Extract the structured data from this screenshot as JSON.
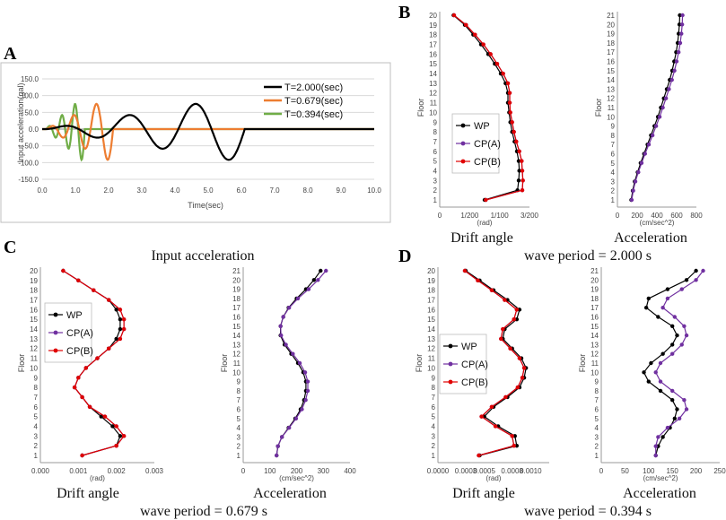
{
  "panels": {
    "a": {
      "letter": "A",
      "chart_data": {
        "type": "line",
        "xlabel": "Time(sec)",
        "ylabel": "Input acceleration(gal)",
        "xlim": [
          0,
          10
        ],
        "ylim": [
          -150,
          150
        ],
        "xticks": [
          "0.0",
          "1.0",
          "2.0",
          "3.0",
          "4.0",
          "5.0",
          "6.0",
          "7.0",
          "8.0",
          "9.0",
          "10.0"
        ],
        "yticks": [
          "150.0",
          "100.0",
          "50.0",
          "0.0",
          "-50.0",
          "-100.0",
          "-150.0"
        ],
        "caption": "Input acceleration",
        "series": [
          {
            "name": "T=2.000(sec)",
            "color": "#000000",
            "period": 2.0,
            "amp": 100,
            "cycles": 3
          },
          {
            "name": "T=0.679(sec)",
            "color": "#ED7D31",
            "period": 0.679,
            "amp": 100,
            "cycles": 3
          },
          {
            "name": "T=0.394(sec)",
            "color": "#70AD47",
            "period": 0.394,
            "amp": 100,
            "cycles": 3
          }
        ]
      }
    },
    "b": {
      "letter": "B",
      "caption": "wave period = 2.000 s",
      "drift": {
        "title": "Drift angle",
        "ylabel": "Floor",
        "unit": "(rad)",
        "xlim": [
          0,
          0.015
        ],
        "xticks": [
          {
            "v": 0,
            "t": "0"
          },
          {
            "v": 0.005,
            "t": "1/200"
          },
          {
            "v": 0.01,
            "t": "1/100"
          },
          {
            "v": 0.015,
            "t": "3/200"
          }
        ],
        "floors": [
          1,
          2,
          3,
          4,
          5,
          6,
          7,
          8,
          9,
          10,
          11,
          12,
          13,
          14,
          15,
          16,
          17,
          18,
          19,
          20
        ],
        "series": [
          {
            "name": "WP",
            "color": "#000000",
            "values": [
              0.0075,
              0.013,
              0.0132,
              0.0133,
              0.0132,
              0.0129,
              0.0125,
              0.0121,
              0.0118,
              0.0116,
              0.0114,
              0.0114,
              0.011,
              0.0102,
              0.0092,
              0.0081,
              0.0069,
              0.0056,
              0.0042,
              0.0023
            ]
          },
          {
            "name": "CP(A)",
            "color": "#7030A0",
            "values": [
              0.0077,
              0.0138,
              0.0139,
              0.0138,
              0.0137,
              0.0133,
              0.0128,
              0.0124,
              0.0121,
              0.0118,
              0.0117,
              0.0117,
              0.0114,
              0.0106,
              0.0096,
              0.0085,
              0.0073,
              0.0059,
              0.0044,
              0.0024
            ]
          },
          {
            "name": "CP(B)",
            "color": "#E00000",
            "values": [
              0.0077,
              0.0138,
              0.0139,
              0.0138,
              0.0137,
              0.0133,
              0.0128,
              0.0124,
              0.0121,
              0.0118,
              0.0117,
              0.0117,
              0.0114,
              0.0106,
              0.0096,
              0.0085,
              0.0073,
              0.0059,
              0.0044,
              0.0024
            ]
          }
        ]
      },
      "accel": {
        "title": "Acceleration",
        "ylabel": "Floor",
        "unit": "(cm/sec^2)",
        "xlim": [
          0,
          800
        ],
        "xticks": [
          {
            "v": 0,
            "t": "0"
          },
          {
            "v": 200,
            "t": "200"
          },
          {
            "v": 400,
            "t": "400"
          },
          {
            "v": 600,
            "t": "600"
          },
          {
            "v": 800,
            "t": "800"
          }
        ],
        "floors": [
          1,
          2,
          3,
          4,
          5,
          6,
          7,
          8,
          9,
          10,
          11,
          12,
          13,
          14,
          15,
          16,
          17,
          18,
          19,
          20,
          21
        ],
        "series": [
          {
            "name": "WP",
            "color": "#000000",
            "values": [
              140,
              155,
              175,
              205,
              235,
              270,
              305,
              340,
              375,
              410,
              440,
              470,
              500,
              530,
              555,
              575,
              595,
              610,
              620,
              628,
              632
            ]
          },
          {
            "name": "CP(A)",
            "color": "#7030A0",
            "values": [
              145,
              160,
              182,
              212,
              245,
              280,
              318,
              356,
              392,
              428,
              460,
              492,
              522,
              552,
              578,
              600,
              620,
              636,
              648,
              656,
              660
            ]
          }
        ]
      }
    },
    "c": {
      "letter": "C",
      "caption": "wave period = 0.679 s",
      "drift": {
        "title": "Drift angle",
        "ylabel": "Floor",
        "unit": "(rad)",
        "xlim": [
          0,
          0.003
        ],
        "xticks": [
          {
            "v": 0,
            "t": "0.000"
          },
          {
            "v": 0.001,
            "t": "0.001"
          },
          {
            "v": 0.002,
            "t": "0.002"
          },
          {
            "v": 0.003,
            "t": "0.003"
          }
        ],
        "floors": [
          1,
          2,
          3,
          4,
          5,
          6,
          7,
          8,
          9,
          10,
          11,
          12,
          13,
          14,
          15,
          16,
          17,
          18,
          19,
          20
        ],
        "series": [
          {
            "name": "WP",
            "color": "#000000",
            "values": [
              0.0011,
              0.002,
              0.0021,
              0.0019,
              0.0016,
              0.0013,
              0.0011,
              0.0009,
              0.001,
              0.0012,
              0.0015,
              0.0018,
              0.002,
              0.0021,
              0.0021,
              0.002,
              0.0018,
              0.0014,
              0.001,
              0.0006
            ]
          },
          {
            "name": "CP(A)",
            "color": "#7030A0",
            "values": [
              0.0011,
              0.002,
              0.0022,
              0.002,
              0.0017,
              0.0013,
              0.0011,
              0.0009,
              0.001,
              0.0012,
              0.0015,
              0.0018,
              0.0021,
              0.0022,
              0.0022,
              0.0021,
              0.0018,
              0.0014,
              0.001,
              0.0006
            ]
          },
          {
            "name": "CP(B)",
            "color": "#E00000",
            "values": [
              0.0011,
              0.002,
              0.0022,
              0.002,
              0.0017,
              0.0013,
              0.0011,
              0.0009,
              0.001,
              0.0012,
              0.0015,
              0.0018,
              0.0021,
              0.0022,
              0.0022,
              0.0021,
              0.0018,
              0.0014,
              0.001,
              0.0006
            ]
          }
        ]
      },
      "accel": {
        "title": "Acceleration",
        "ylabel": "Floor",
        "unit": "(cm/sec^2)",
        "xlim": [
          0,
          400
        ],
        "xticks": [
          {
            "v": 0,
            "t": "0"
          },
          {
            "v": 100,
            "t": "100"
          },
          {
            "v": 200,
            "t": "200"
          },
          {
            "v": 300,
            "t": "300"
          },
          {
            "v": 400,
            "t": "400"
          }
        ],
        "floors": [
          1,
          2,
          3,
          4,
          5,
          6,
          7,
          8,
          9,
          10,
          11,
          12,
          13,
          14,
          15,
          16,
          17,
          18,
          19,
          20,
          21
        ],
        "series": [
          {
            "name": "WP",
            "color": "#000000",
            "values": [
              125,
              130,
              145,
              170,
              195,
              215,
              228,
              235,
              235,
              225,
              205,
              180,
              155,
              140,
              140,
              150,
              170,
              200,
              235,
              265,
              290
            ]
          },
          {
            "name": "CP(A)",
            "color": "#7030A0",
            "values": [
              125,
              130,
              145,
              172,
              198,
              220,
              234,
              242,
              242,
              232,
              212,
              186,
              160,
              142,
              140,
              150,
              172,
              205,
              245,
              280,
              310
            ]
          }
        ]
      }
    },
    "d": {
      "letter": "D",
      "caption": "wave period = 0.394 s",
      "drift": {
        "title": "Drift angle",
        "ylabel": "Floor",
        "unit": "(rad)",
        "xlim": [
          0,
          0.0012
        ],
        "xticks": [
          {
            "v": 0,
            "t": "0.0000"
          },
          {
            "v": 0.0003,
            "t": "0.0003"
          },
          {
            "v": 0.0005,
            "t": "0.0005"
          },
          {
            "v": 0.0008,
            "t": "0.0008"
          },
          {
            "v": 0.001,
            "t": "0.0010"
          }
        ],
        "floors": [
          1,
          2,
          3,
          4,
          5,
          6,
          7,
          8,
          9,
          10,
          11,
          12,
          13,
          14,
          15,
          16,
          17,
          18,
          19,
          20
        ],
        "series": [
          {
            "name": "WP",
            "color": "#000000",
            "values": [
              0.00045,
              0.00085,
              0.00083,
              0.00065,
              0.0005,
              0.0006,
              0.00075,
              0.00088,
              0.00093,
              0.00095,
              0.0009,
              0.0008,
              0.0007,
              0.00072,
              0.00085,
              0.00088,
              0.00075,
              0.0006,
              0.00045,
              0.0003
            ]
          },
          {
            "name": "CP(A)",
            "color": "#7030A0",
            "values": [
              0.00044,
              0.00082,
              0.0008,
              0.00062,
              0.00047,
              0.00058,
              0.00073,
              0.00086,
              0.00091,
              0.00093,
              0.00088,
              0.00078,
              0.00068,
              0.0007,
              0.00082,
              0.00085,
              0.00072,
              0.00058,
              0.00043,
              0.00029
            ]
          },
          {
            "name": "CP(B)",
            "color": "#E00000",
            "values": [
              0.00044,
              0.00082,
              0.0008,
              0.00062,
              0.00047,
              0.00058,
              0.00073,
              0.00086,
              0.00091,
              0.00093,
              0.00088,
              0.00078,
              0.00068,
              0.0007,
              0.00082,
              0.00085,
              0.00072,
              0.00058,
              0.00043,
              0.00029
            ]
          }
        ]
      },
      "accel": {
        "title": "Acceleration",
        "ylabel": "Floor",
        "unit": "(cm/sec^2)",
        "xlim": [
          0,
          250
        ],
        "xticks": [
          {
            "v": 0,
            "t": "0"
          },
          {
            "v": 50,
            "t": "50"
          },
          {
            "v": 100,
            "t": "100"
          },
          {
            "v": 150,
            "t": "150"
          },
          {
            "v": 200,
            "t": "200"
          },
          {
            "v": 250,
            "t": "250"
          }
        ],
        "floors": [
          1,
          2,
          3,
          4,
          5,
          6,
          7,
          8,
          9,
          10,
          11,
          12,
          13,
          14,
          15,
          16,
          17,
          18,
          19,
          20,
          21
        ],
        "series": [
          {
            "name": "WP",
            "color": "#000000",
            "values": [
              115,
              120,
              130,
              145,
              155,
              160,
              150,
              125,
              100,
              90,
              105,
              130,
              150,
              160,
              150,
              120,
              95,
              100,
              140,
              180,
              200
            ]
          },
          {
            "name": "CP(A)",
            "color": "#7030A0",
            "values": [
              115,
              115,
              120,
              140,
              165,
              180,
              175,
              150,
              125,
              115,
              125,
              150,
              170,
              180,
              175,
              155,
              130,
              140,
              170,
              200,
              215
            ]
          }
        ]
      }
    }
  }
}
